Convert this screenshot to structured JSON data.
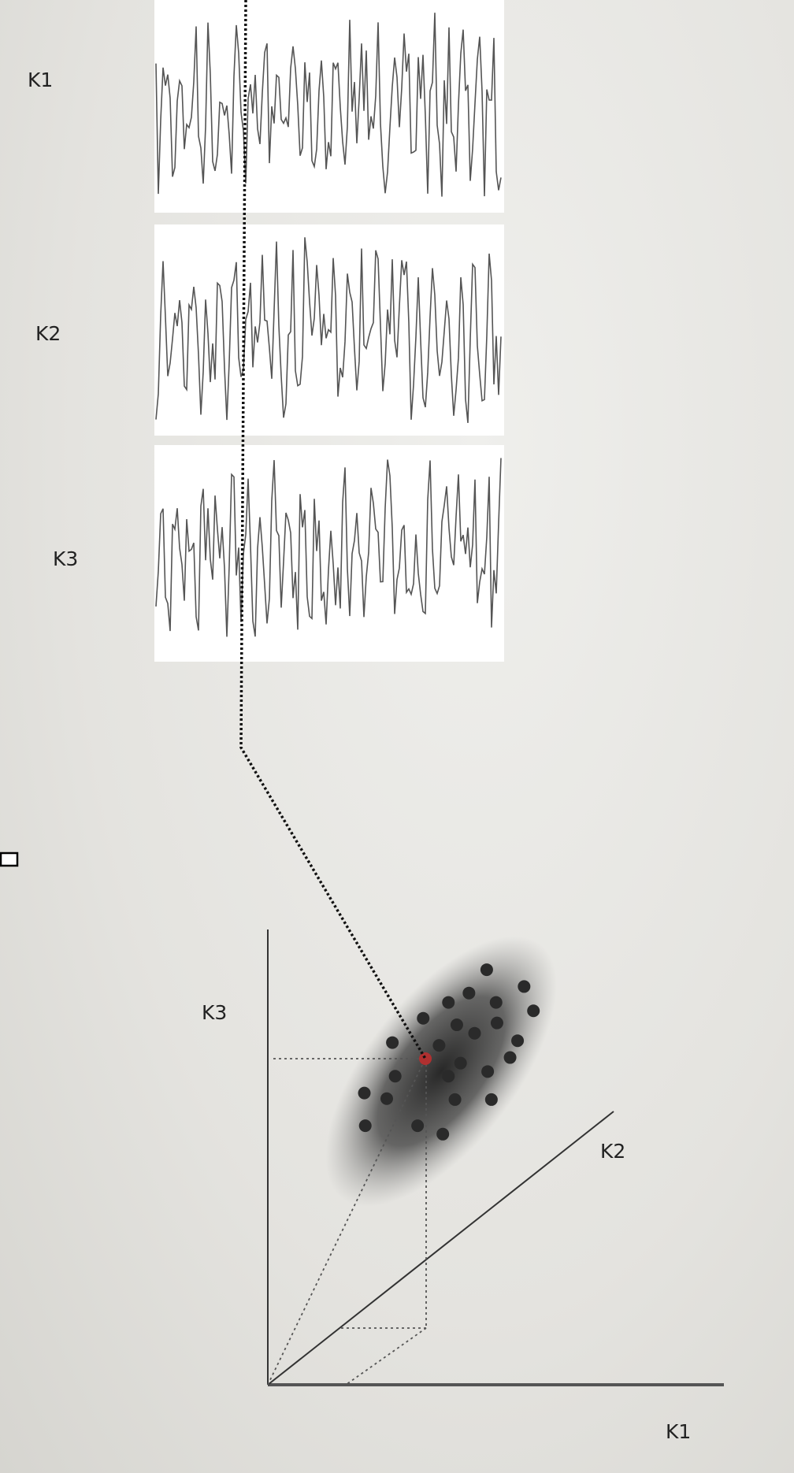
{
  "signals": [
    {
      "label": "K1"
    },
    {
      "label": "K2"
    },
    {
      "label": "K3"
    }
  ],
  "scatter": {
    "axes": {
      "x": "K1",
      "y": "K2",
      "z": "K3"
    },
    "highlight_color": "#b03030",
    "point_color": "#2a2a2a"
  }
}
